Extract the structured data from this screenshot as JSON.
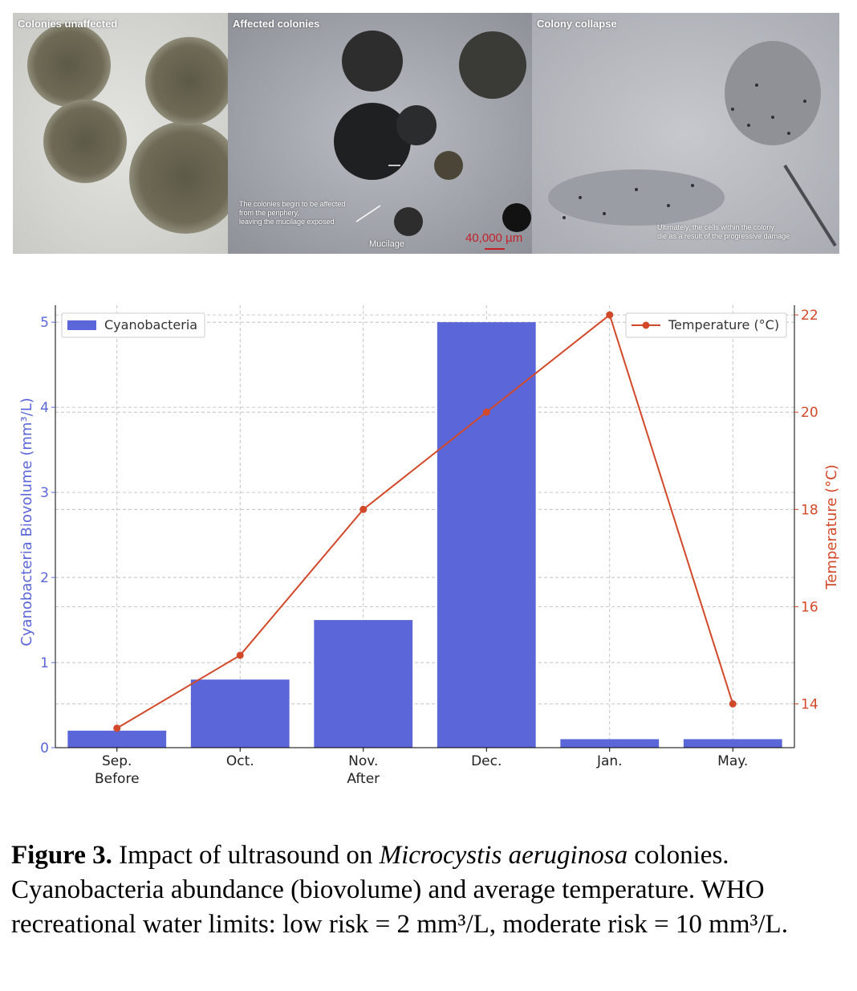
{
  "micrographs": {
    "panels": [
      {
        "title": "Colonies unaffected"
      },
      {
        "title": "Affected colonies",
        "note": "The colonies begin to be affected\nfrom the periphery,\nleaving the mucilage exposed",
        "label": "Mucilage",
        "scale_label": "40,000 µm"
      },
      {
        "title": "Colony collapse",
        "note": "Ultimately, the cells within the colony\ndie as a result of the progressive damage"
      }
    ]
  },
  "chart_data": {
    "type": "bar",
    "categories": [
      "Sep.\nBefore",
      "Oct.",
      "Nov.\nAfter",
      "Dec.",
      "Jan.",
      "May."
    ],
    "series": [
      {
        "name": "Cyanobacteria",
        "type": "bar",
        "axis": "left",
        "color": "#5b67d8",
        "values": [
          0.2,
          0.8,
          1.5,
          5.0,
          0.1,
          0.1
        ]
      },
      {
        "name": "Temperature (°C)",
        "type": "line",
        "axis": "right",
        "color": "#d2492a",
        "values": [
          13.5,
          15,
          18,
          20,
          22,
          14
        ]
      }
    ],
    "ylabel": "Cyanobacteria Biovolume (mm³/L)",
    "ylabel_right": "Temperature (°C)",
    "ylim": [
      0,
      5.2
    ],
    "ylim_right": [
      13.1,
      22.2
    ],
    "yticks": [
      0,
      1,
      2,
      3,
      4,
      5
    ],
    "yticks_right": [
      14,
      16,
      18,
      20,
      22
    ],
    "grid": true,
    "legend_left": "top-left",
    "legend_right": "top-right",
    "colors": {
      "left_axis": "#5b67d8",
      "right_axis": "#d2492a"
    }
  },
  "caption": {
    "label": "Figure 3.",
    "text_before": " Impact of ultrasound on ",
    "species": "Microcystis aeruginosa",
    "text_after": " colonies. Cyanobacteria abundance (biovolume) and average temperature. WHO recreational water limits: low risk = 2 mm³/L, moderate risk = 10 mm³/L."
  }
}
